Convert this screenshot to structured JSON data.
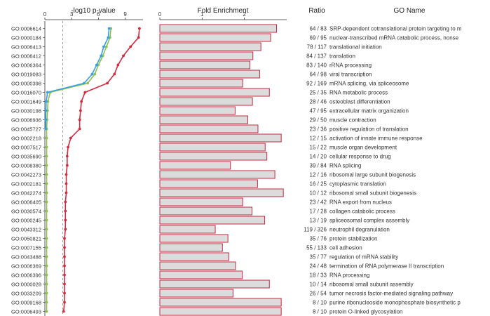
{
  "go_ids": [
    "GO:0006614",
    "GO:0000184",
    "GO:0006413",
    "GO:0006412",
    "GO:0006364",
    "GO:0019083",
    "GO:0000398",
    "GO:0016070",
    "GO:0001649",
    "GO:0030198",
    "GO:0006936",
    "GO:0045727",
    "GO:0002218",
    "GO:0007517",
    "GO:0035690",
    "GO:0008380",
    "GO:0042273",
    "GO:0002181",
    "GO:0042274",
    "GO:0006405",
    "GO:0030574",
    "GO:0000245",
    "GO:0043312",
    "GO:0050821",
    "GO:0007155",
    "GO:0043488",
    "GO:0006369",
    "GO:0006396",
    "GO:0000028",
    "GO:0033209",
    "GO:0009168",
    "GO:0006493"
  ],
  "chart_data": [
    {
      "type": "line",
      "title": "-log10 p-value",
      "xlim": [
        0,
        11
      ],
      "x_ticks": [
        "0",
        "3",
        "6",
        "9"
      ],
      "x_tick_values": [
        0,
        3,
        6,
        9
      ],
      "reference_line": 2,
      "orientation": "horizontal-categories",
      "series": [
        {
          "color": "#d22a3e",
          "values": [
            10.6,
            10.5,
            9.6,
            8.8,
            8.2,
            7.8,
            7.0,
            4.5,
            4.1,
            4.0,
            3.9,
            3.9,
            2.9,
            2.6,
            2.5,
            2.5,
            2.4,
            2.4,
            2.4,
            2.3,
            2.3,
            2.3,
            2.3,
            2.2,
            2.2,
            2.2,
            2.2,
            2.2,
            2.2,
            2.2,
            2.2,
            2.1
          ]
        },
        {
          "color": "#8cc152",
          "values": [
            7.4,
            7.3,
            6.9,
            6.5,
            6.0,
            5.6,
            4.8,
            0.6,
            0.35,
            0.3,
            0.25,
            0.2,
            0.2,
            0.2,
            0.2,
            0.2,
            0.2,
            0.2,
            0.2,
            0.2,
            0.2,
            0.2,
            0.2,
            0.2,
            0.2,
            0.2,
            0.2,
            0.2,
            0.2,
            0.2,
            0.2,
            0.2
          ]
        },
        {
          "color": "#3a9fe0",
          "values": [
            7.2,
            7.1,
            6.6,
            6.3,
            5.8,
            5.3,
            4.4,
            0.3,
            0.15,
            0.12,
            0.1,
            0.1
          ]
        }
      ]
    },
    {
      "type": "bar",
      "title": "Fold Enrichment",
      "orientation": "horizontal",
      "xlim": [
        0,
        3.0
      ],
      "x_ticks": [
        "0",
        "1",
        "2"
      ],
      "x_tick_values": [
        0,
        1,
        2
      ],
      "bar_fill": "#dcdcdc",
      "bar_stroke": "#c62842",
      "values": [
        2.76,
        2.62,
        2.39,
        2.2,
        2.13,
        2.36,
        1.96,
        2.59,
        2.19,
        1.78,
        2.08,
        2.32,
        2.87,
        2.49,
        2.53,
        1.67,
        2.72,
        2.31,
        2.92,
        1.96,
        2.18,
        2.48,
        1.31,
        1.61,
        1.48,
        1.63,
        1.79,
        1.95,
        2.59,
        1.73,
        2.87,
        2.87
      ]
    }
  ],
  "ratio_header": "Ratio",
  "ratios": [
    "64 / 83",
    "69 / 95",
    "78 / 117",
    "84 / 137",
    "83 / 140",
    "64 / 98",
    "92 / 169",
    "25 / 35",
    "28 / 46",
    "47 / 95",
    "29 / 50",
    "23 / 36",
    "12 / 15",
    "15 / 22",
    "14 / 20",
    "39 / 84",
    "12 / 16",
    "16 / 25",
    "10 / 12",
    "23 / 42",
    "17 / 28",
    "13 / 19",
    "119 / 326",
    "35 / 76",
    "55 / 133",
    "35 / 77",
    "24 / 48",
    "18 / 33",
    "10 / 14",
    "26 / 54",
    "8 / 10",
    "8 / 10"
  ],
  "go_name_header": "GO Name",
  "go_names": [
    "SRP-dependent cotranslational protein targeting to m",
    "nuclear-transcribed mRNA catabolic process, nonse",
    "translational initiation",
    "translation",
    "rRNA processing",
    "viral transcription",
    "mRNA splicing, via spliceosome",
    "RNA metabolic process",
    "osteoblast differentiation",
    "extracellular matrix organization",
    "muscle contraction",
    "positive regulation of translation",
    "activation of innate immune response",
    "muscle organ development",
    "cellular response to drug",
    "RNA splicing",
    "ribosomal large subunit biogenesis",
    "cytoplasmic translation",
    "ribosomal small subunit biogenesis",
    "RNA export from nucleus",
    "collagen catabolic process",
    "spliceosomal complex assembly",
    "neutrophil degranulation",
    "protein stabilization",
    "cell adhesion",
    "regulation of mRNA stability",
    "termination of RNA polymerase II transcription",
    "RNA processing",
    "ribosomal small subunit assembly",
    "tumor necrosis factor-mediated signaling pathway",
    "purine ribonucleoside monophosphate biosynthetic p",
    "protein O-linked glycosylation"
  ]
}
